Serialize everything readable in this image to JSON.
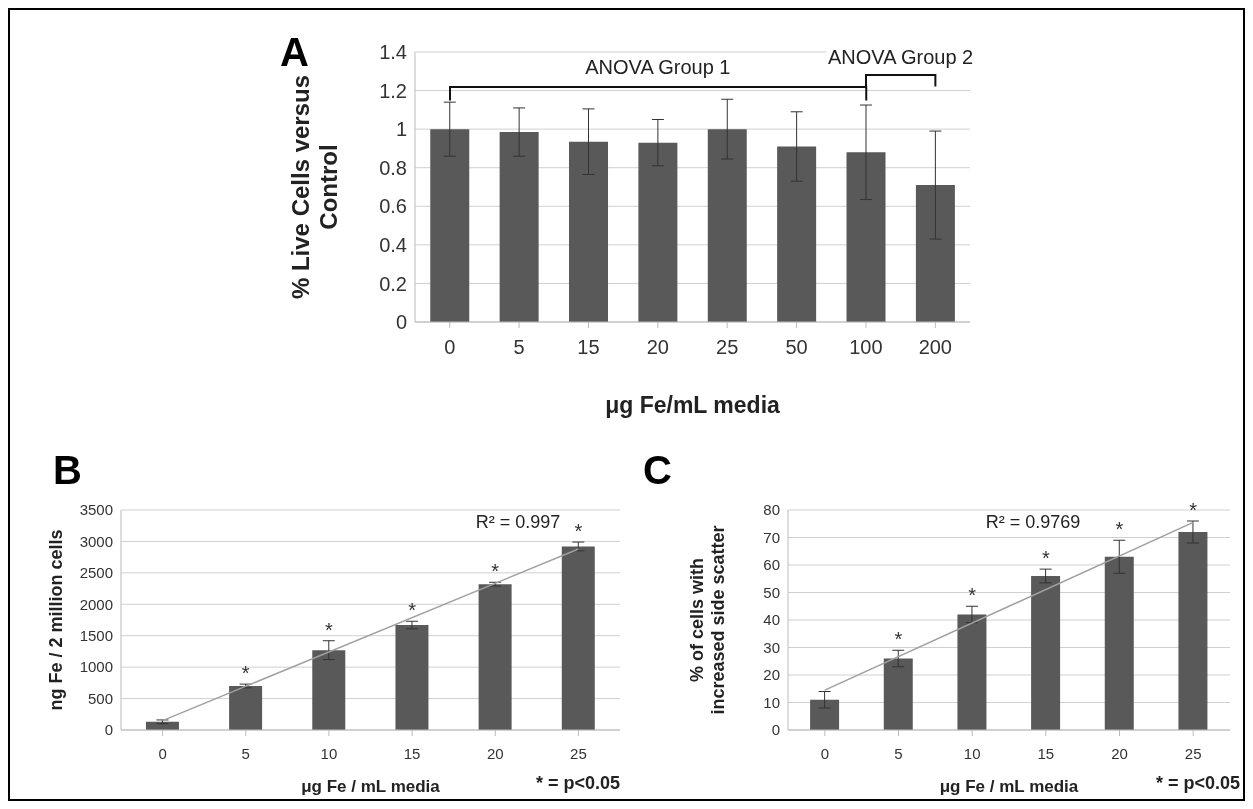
{
  "chart_data": [
    {
      "type": "bar",
      "title": "A",
      "xlabel": "μg Fe/mL media",
      "ylabel": "% Live Cells versus Control",
      "categories": [
        "0",
        "5",
        "15",
        "20",
        "25",
        "50",
        "100",
        "200"
      ],
      "grid": "y",
      "ylim": [
        0,
        1.4
      ],
      "yticks": [
        0,
        0.2,
        0.4,
        0.6,
        0.8,
        1,
        1.2,
        1.4
      ],
      "series": [
        {
          "color": "#595959",
          "values": [
            1.0,
            0.985,
            0.935,
            0.93,
            1.0,
            0.91,
            0.88,
            0.71
          ],
          "errors": [
            0.14,
            0.125,
            0.17,
            0.12,
            0.155,
            0.18,
            0.245,
            0.28
          ]
        }
      ],
      "annotations": [
        "ANOVA Group 1",
        "ANOVA Group 2"
      ]
    },
    {
      "type": "bar",
      "title": "B",
      "xlabel": "μg Fe / mL media",
      "ylabel": "ng Fe / 2 million cells",
      "categories": [
        "0",
        "5",
        "10",
        "15",
        "20",
        "25"
      ],
      "grid": "y",
      "marker": "none",
      "ylim": [
        0,
        3500
      ],
      "yticks": [
        0,
        500,
        1000,
        1500,
        2000,
        2500,
        3000,
        3500
      ],
      "series": [
        {
          "color": "#595959",
          "values": [
            130,
            700,
            1270,
            1670,
            2320,
            2920
          ],
          "errors": [
            30,
            30,
            150,
            60,
            30,
            70
          ]
        },
        {
          "type": "line",
          "color": "#a0a0a0",
          "x": [
            "0",
            "25"
          ],
          "values": [
            150,
            2880
          ]
        }
      ],
      "annotations": [
        {
          "text": "*",
          "x": "5",
          "y": 700
        },
        {
          "text": "*",
          "x": "10",
          "y": 1270
        },
        {
          "text": "*",
          "x": "15",
          "y": 1670
        },
        {
          "text": "*",
          "x": "20",
          "y": 2320
        },
        {
          "text": "*",
          "x": "25",
          "y": 2920
        },
        "R² = 0.997",
        "* = p<0.05"
      ]
    },
    {
      "type": "bar",
      "title": "C",
      "xlabel": "μg Fe / mL media",
      "ylabel": "% of cells with increased side scatter",
      "categories": [
        "0",
        "5",
        "10",
        "15",
        "20",
        "25"
      ],
      "grid": "y",
      "marker": "none",
      "ylim": [
        0,
        80
      ],
      "yticks": [
        0,
        10,
        20,
        30,
        40,
        50,
        60,
        70,
        80
      ],
      "series": [
        {
          "color": "#595959",
          "values": [
            11,
            26,
            42,
            56,
            63,
            72
          ],
          "errors": [
            3,
            3,
            3,
            2.5,
            6,
            4
          ]
        },
        {
          "type": "line",
          "color": "#a0a0a0",
          "x": [
            "0",
            "25"
          ],
          "values": [
            14.5,
            75.5
          ]
        }
      ],
      "annotations": [
        {
          "text": "*",
          "x": "5",
          "y": 26
        },
        {
          "text": "*",
          "x": "10",
          "y": 42
        },
        {
          "text": "*",
          "x": "15",
          "y": 56
        },
        {
          "text": "*",
          "x": "20",
          "y": 63
        },
        {
          "text": "*",
          "x": "25",
          "y": 72
        },
        "R² = 0.9769",
        "* = p<0.05"
      ]
    }
  ]
}
